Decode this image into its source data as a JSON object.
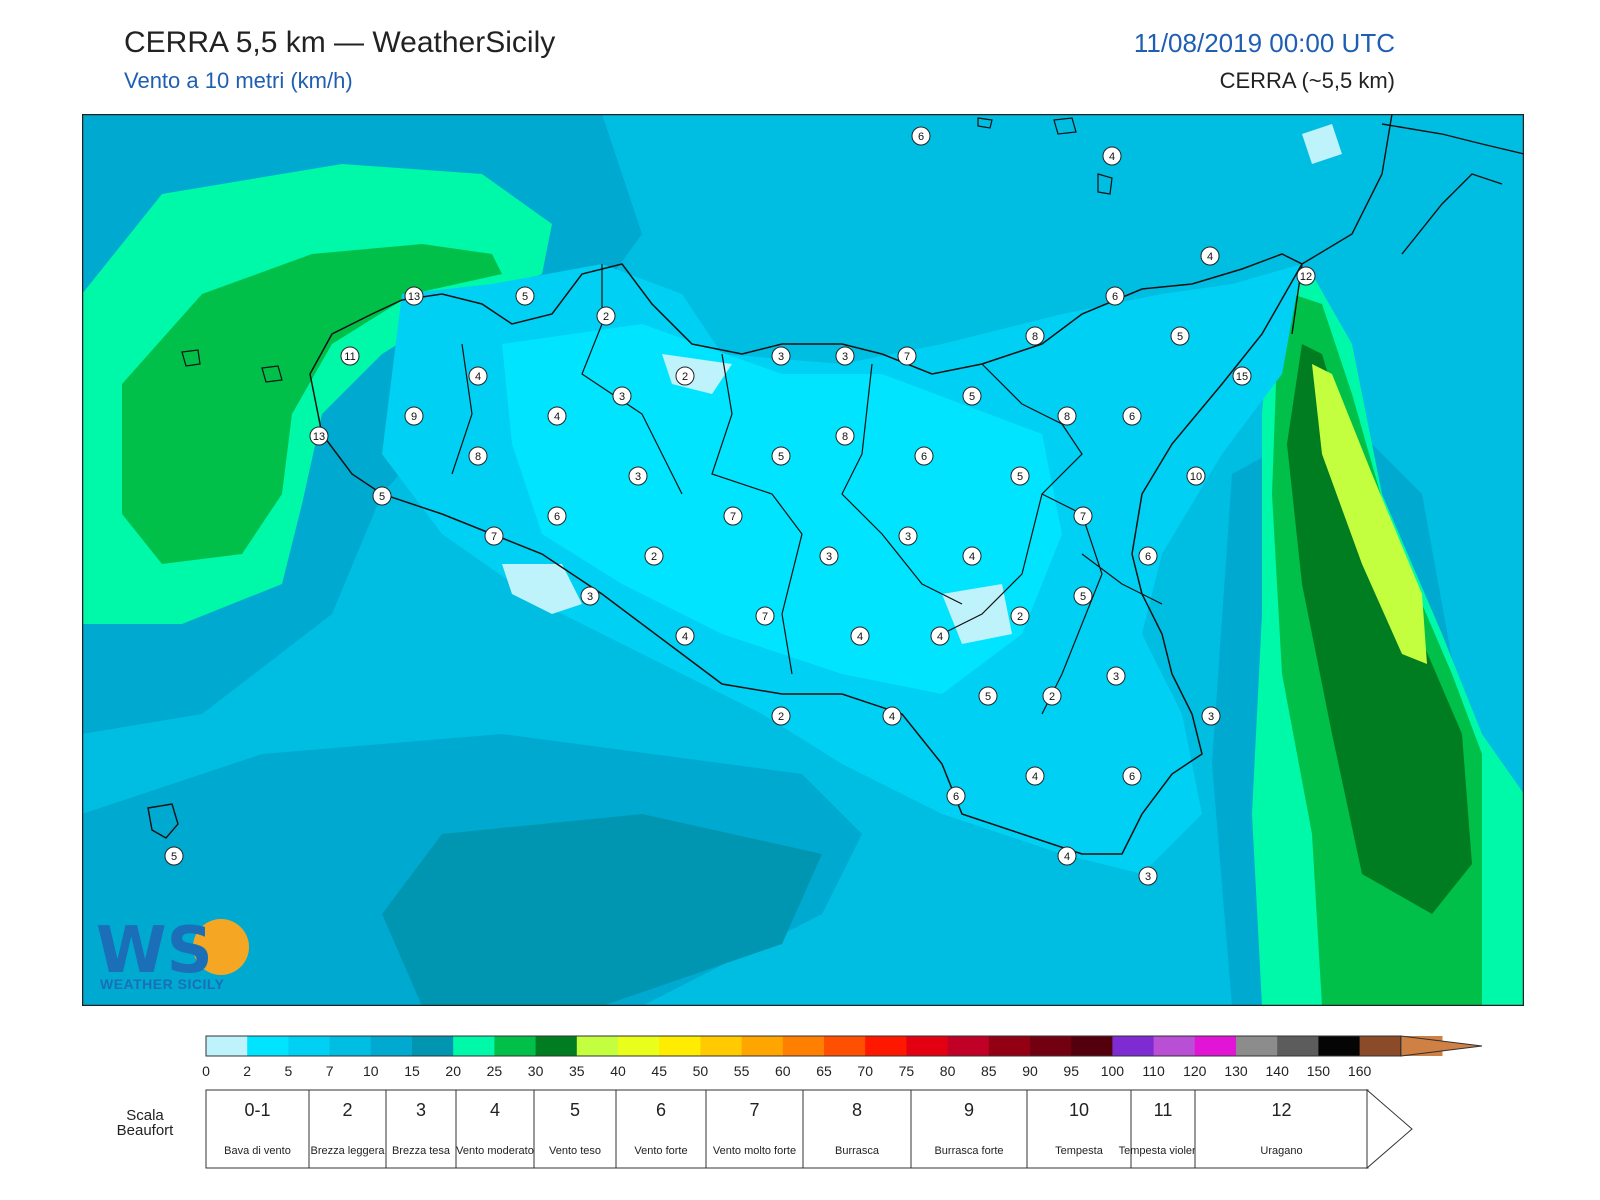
{
  "header": {
    "title": "CERRA 5,5 km — WeatherSicily",
    "subtitle": "Vento a 10 metri (km/h)",
    "datetime": "11/08/2019 00:00 UTC",
    "model": "CERRA (~5,5 km)"
  },
  "stations": [
    {
      "v": "6",
      "lon": 921,
      "lat": 136
    },
    {
      "v": "4",
      "lon": 1112,
      "lat": 156
    },
    {
      "v": "4",
      "lon": 1210,
      "lat": 256
    },
    {
      "v": "12",
      "lon": 1306,
      "lat": 276
    },
    {
      "v": "13",
      "lon": 414,
      "lat": 296
    },
    {
      "v": "5",
      "lon": 525,
      "lat": 296
    },
    {
      "v": "6",
      "lon": 1115,
      "lat": 296
    },
    {
      "v": "2",
      "lon": 606,
      "lat": 316
    },
    {
      "v": "8",
      "lon": 1035,
      "lat": 336
    },
    {
      "v": "5",
      "lon": 1180,
      "lat": 336
    },
    {
      "v": "11",
      "lon": 350,
      "lat": 356
    },
    {
      "v": "3",
      "lon": 781,
      "lat": 356
    },
    {
      "v": "3",
      "lon": 845,
      "lat": 356
    },
    {
      "v": "7",
      "lon": 907,
      "lat": 356
    },
    {
      "v": "15",
      "lon": 1242,
      "lat": 376
    },
    {
      "v": "4",
      "lon": 478,
      "lat": 376
    },
    {
      "v": "2",
      "lon": 685,
      "lat": 376
    },
    {
      "v": "3",
      "lon": 622,
      "lat": 396
    },
    {
      "v": "5",
      "lon": 972,
      "lat": 396
    },
    {
      "v": "9",
      "lon": 414,
      "lat": 416
    },
    {
      "v": "4",
      "lon": 557,
      "lat": 416
    },
    {
      "v": "8",
      "lon": 1067,
      "lat": 416
    },
    {
      "v": "6",
      "lon": 1132,
      "lat": 416
    },
    {
      "v": "13",
      "lon": 319,
      "lat": 436
    },
    {
      "v": "8",
      "lon": 845,
      "lat": 436
    },
    {
      "v": "8",
      "lon": 478,
      "lat": 456
    },
    {
      "v": "5",
      "lon": 781,
      "lat": 456
    },
    {
      "v": "6",
      "lon": 924,
      "lat": 456
    },
    {
      "v": "3",
      "lon": 638,
      "lat": 476
    },
    {
      "v": "5",
      "lon": 1020,
      "lat": 476
    },
    {
      "v": "10",
      "lon": 1196,
      "lat": 476
    },
    {
      "v": "5",
      "lon": 382,
      "lat": 496
    },
    {
      "v": "6",
      "lon": 557,
      "lat": 516
    },
    {
      "v": "7",
      "lon": 733,
      "lat": 516
    },
    {
      "v": "7",
      "lon": 1083,
      "lat": 516
    },
    {
      "v": "7",
      "lon": 494,
      "lat": 536
    },
    {
      "v": "3",
      "lon": 908,
      "lat": 536
    },
    {
      "v": "2",
      "lon": 654,
      "lat": 556
    },
    {
      "v": "3",
      "lon": 829,
      "lat": 556
    },
    {
      "v": "4",
      "lon": 972,
      "lat": 556
    },
    {
      "v": "6",
      "lon": 1148,
      "lat": 556
    },
    {
      "v": "3",
      "lon": 590,
      "lat": 596
    },
    {
      "v": "5",
      "lon": 1083,
      "lat": 596
    },
    {
      "v": "7",
      "lon": 765,
      "lat": 616
    },
    {
      "v": "2",
      "lon": 1020,
      "lat": 616
    },
    {
      "v": "4",
      "lon": 685,
      "lat": 636
    },
    {
      "v": "4",
      "lon": 860,
      "lat": 636
    },
    {
      "v": "4",
      "lon": 940,
      "lat": 636
    },
    {
      "v": "3",
      "lon": 1116,
      "lat": 676
    },
    {
      "v": "5",
      "lon": 988,
      "lat": 696
    },
    {
      "v": "2",
      "lon": 1052,
      "lat": 696
    },
    {
      "v": "2",
      "lon": 781,
      "lat": 716
    },
    {
      "v": "4",
      "lon": 892,
      "lat": 716
    },
    {
      "v": "3",
      "lon": 1211,
      "lat": 716
    },
    {
      "v": "4",
      "lon": 1035,
      "lat": 776
    },
    {
      "v": "6",
      "lon": 1132,
      "lat": 776
    },
    {
      "v": "6",
      "lon": 956,
      "lat": 796
    },
    {
      "v": "5",
      "lon": 174,
      "lat": 856
    },
    {
      "v": "4",
      "lon": 1067,
      "lat": 856
    },
    {
      "v": "3",
      "lon": 1148,
      "lat": 876
    }
  ],
  "colorbar": {
    "ticks": [
      "0",
      "2",
      "5",
      "7",
      "10",
      "15",
      "20",
      "25",
      "30",
      "35",
      "40",
      "45",
      "50",
      "55",
      "60",
      "65",
      "70",
      "75",
      "80",
      "85",
      "90",
      "95",
      "100",
      "110",
      "120",
      "130",
      "140",
      "150",
      "160"
    ],
    "colors": [
      "#bff3fb",
      "#00e4ff",
      "#00d0f3",
      "#00bde2",
      "#00a9cf",
      "#0096b2",
      "#00f9a8",
      "#00c04a",
      "#007c21",
      "#c4ff3f",
      "#e9ff1b",
      "#ffec00",
      "#ffcb00",
      "#ffa500",
      "#ff7f00",
      "#ff4f00",
      "#ff1800",
      "#e40013",
      "#c00027",
      "#930014",
      "#730011",
      "#54000c",
      "#7f2bd3",
      "#b94fd5",
      "#e215d7",
      "#8c8c8c",
      "#5c5c5c",
      "#050505",
      "#8b4a28",
      "#cf8045"
    ]
  },
  "beaufort": {
    "label": "Scala Beaufort",
    "scale": [
      {
        "n": "0-1",
        "d": "Bava di vento"
      },
      {
        "n": "2",
        "d": "Brezza leggera"
      },
      {
        "n": "3",
        "d": "Brezza tesa"
      },
      {
        "n": "4",
        "d": "Vento moderato"
      },
      {
        "n": "5",
        "d": "Vento teso"
      },
      {
        "n": "6",
        "d": "Vento forte"
      },
      {
        "n": "7",
        "d": "Vento molto forte"
      },
      {
        "n": "8",
        "d": "Burrasca"
      },
      {
        "n": "9",
        "d": "Burrasca forte"
      },
      {
        "n": "10",
        "d": "Tempesta"
      },
      {
        "n": "11",
        "d": "Tempesta violenta"
      },
      {
        "n": "12",
        "d": "Uragano"
      }
    ]
  },
  "logo": {
    "letters": "WS",
    "name": "WEATHER SICILY"
  }
}
